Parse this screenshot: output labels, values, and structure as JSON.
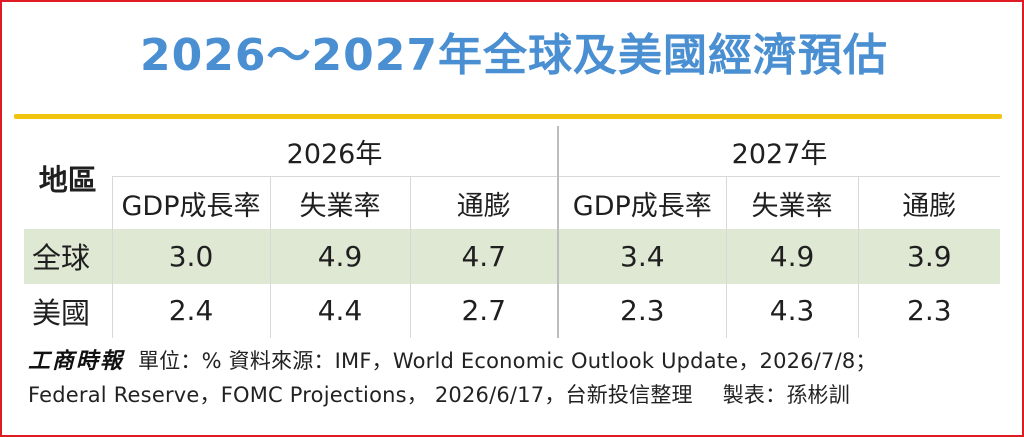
{
  "title": "2026～2027年全球及美國經濟預估",
  "table": {
    "region_header": "地區",
    "years": [
      "2026年",
      "2027年"
    ],
    "metric_headers": [
      "GDP成長率",
      "失業率",
      "通膨",
      "GDP成長率",
      "失業率",
      "通膨"
    ],
    "rows": [
      {
        "region": "全球",
        "values": [
          "3.0",
          "4.9",
          "4.7",
          "3.4",
          "4.9",
          "3.9"
        ]
      },
      {
        "region": "美國",
        "values": [
          "2.4",
          "4.4",
          "2.7",
          "2.3",
          "4.3",
          "2.3"
        ]
      }
    ]
  },
  "footer": {
    "brand": "工商時報",
    "line1": "單位：%  資料來源：IMF，World Economic Outlook Update，2026/7/8；",
    "line2_source": "Federal Reserve，FOMC Projections， 2026/6/17，台新投信整理",
    "line2_maker": "製表：孫彬訓"
  },
  "colors": {
    "title": "#4a8fd2",
    "title_rule": "#f1c40f",
    "row_shade": "#dfe8d3",
    "frame_border": "#e01b24"
  }
}
